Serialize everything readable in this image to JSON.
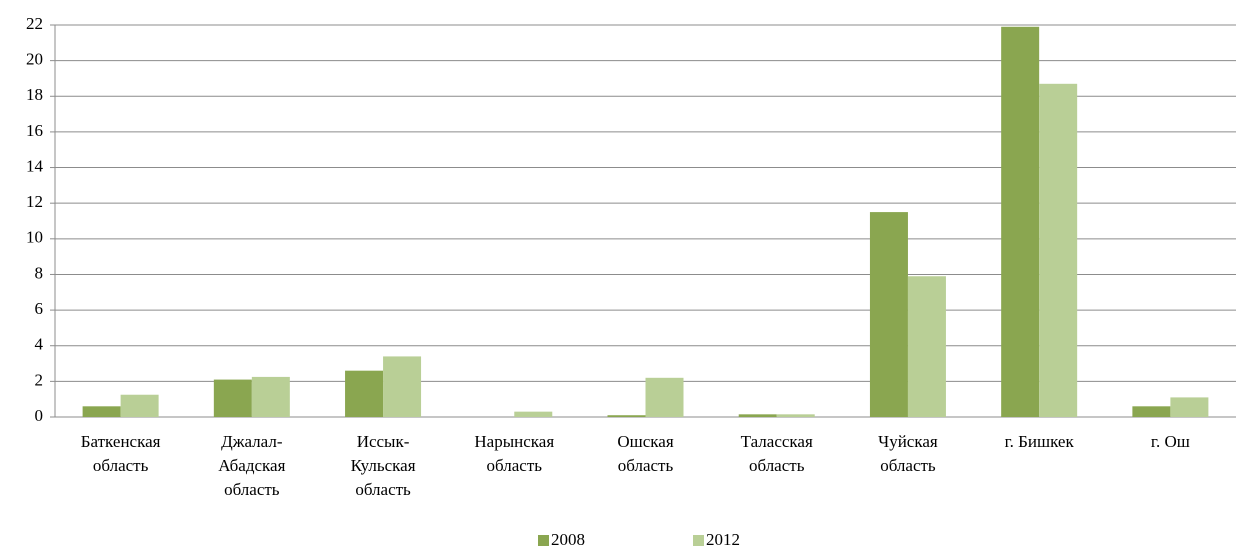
{
  "chart_data": {
    "type": "bar",
    "categories": [
      "Баткенская\nобласть",
      "Джалал-\nАбадская\nобласть",
      "Иссык-\nКульская\nобласть",
      "Нарынская\nобласть",
      "Ошская\nобласть",
      "Таласская\nобласть",
      "Чуйская\nобласть",
      "г. Бишкек",
      "г. Ош"
    ],
    "series": [
      {
        "name": "2008",
        "color": "#8aa650",
        "values": [
          0.6,
          2.1,
          2.6,
          0,
          0.1,
          0.15,
          11.5,
          21.9,
          0.6
        ]
      },
      {
        "name": "2012",
        "color": "#b9cf96",
        "values": [
          1.25,
          2.25,
          3.4,
          0.3,
          2.2,
          0.15,
          7.9,
          18.7,
          1.1
        ]
      }
    ],
    "ylim": [
      0,
      22
    ],
    "yticks": [
      0,
      2,
      4,
      6,
      8,
      10,
      12,
      14,
      16,
      18,
      20,
      22
    ],
    "grid": true,
    "legend": "bottom"
  }
}
